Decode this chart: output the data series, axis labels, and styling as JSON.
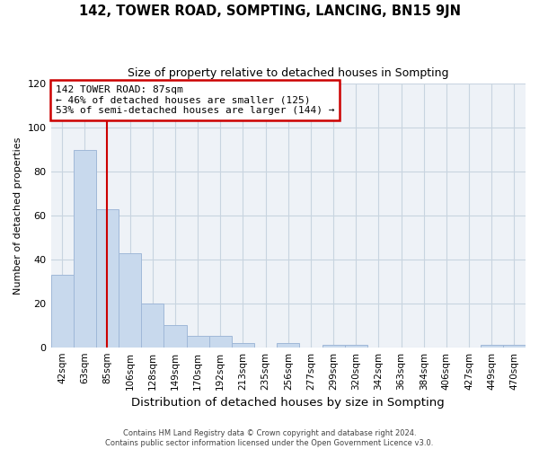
{
  "title": "142, TOWER ROAD, SOMPTING, LANCING, BN15 9JN",
  "subtitle": "Size of property relative to detached houses in Sompting",
  "xlabel": "Distribution of detached houses by size in Sompting",
  "ylabel": "Number of detached properties",
  "bin_labels": [
    "42sqm",
    "63sqm",
    "85sqm",
    "106sqm",
    "128sqm",
    "149sqm",
    "170sqm",
    "192sqm",
    "213sqm",
    "235sqm",
    "256sqm",
    "277sqm",
    "299sqm",
    "320sqm",
    "342sqm",
    "363sqm",
    "384sqm",
    "406sqm",
    "427sqm",
    "449sqm",
    "470sqm"
  ],
  "bar_values": [
    33,
    90,
    63,
    43,
    20,
    10,
    5,
    5,
    2,
    0,
    2,
    0,
    1,
    1,
    0,
    0,
    0,
    0,
    0,
    1,
    1
  ],
  "bar_color": "#c8d9ed",
  "bar_edge_color": "#a0b8d8",
  "grid_color": "#c8d4e0",
  "bg_color": "#eef2f7",
  "red_line_bar_index": 2,
  "annotation_title": "142 TOWER ROAD: 87sqm",
  "annotation_line1": "← 46% of detached houses are smaller (125)",
  "annotation_line2": "53% of semi-detached houses are larger (144) →",
  "annotation_box_color": "#ffffff",
  "annotation_box_edge_color": "#cc0000",
  "red_line_color": "#cc0000",
  "footer_line1": "Contains HM Land Registry data © Crown copyright and database right 2024.",
  "footer_line2": "Contains public sector information licensed under the Open Government Licence v3.0.",
  "ylim": [
    0,
    120
  ],
  "yticks": [
    0,
    20,
    40,
    60,
    80,
    100,
    120
  ]
}
